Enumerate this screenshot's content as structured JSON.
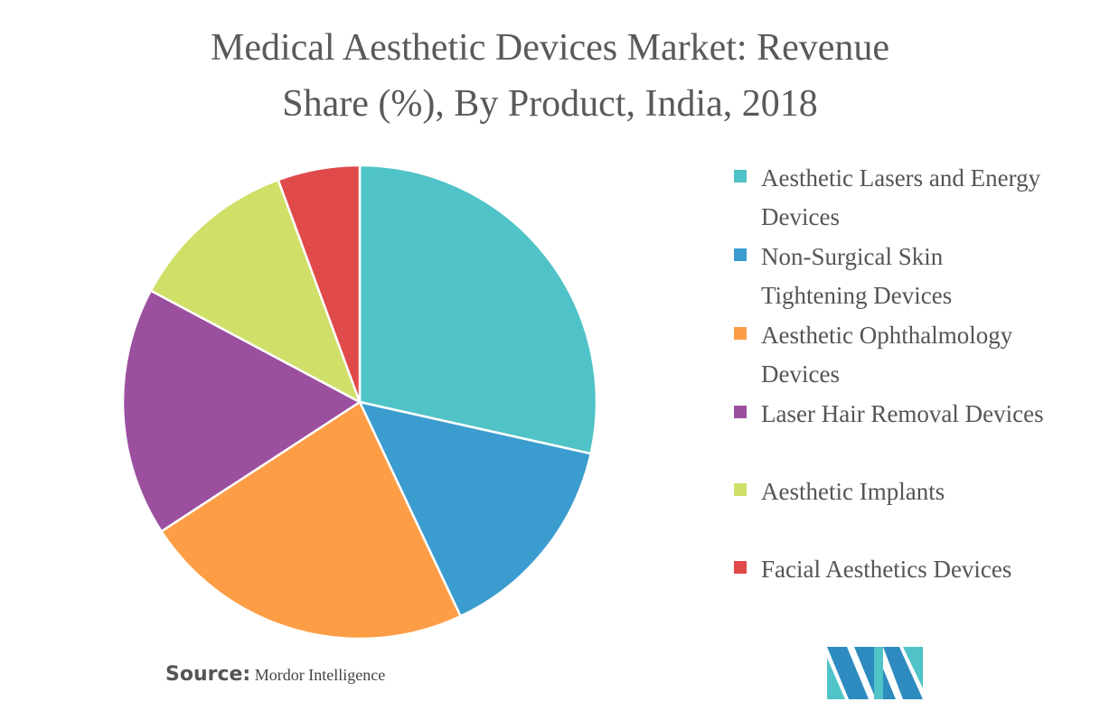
{
  "title_lines": [
    "Medical Aesthetic Devices Market: Revenue",
    "Share (%), By Product, India, 2018"
  ],
  "chart_data": {
    "type": "pie",
    "title": "Medical Aesthetic Devices Market: Revenue Share (%), By Product, India, 2018",
    "start_angle": "12 o'clock, clockwise",
    "legend_position": "right",
    "slices": [
      {
        "label": "Aesthetic Lasers and Energy Devices",
        "value": 28.5,
        "color": "#4fc3c7"
      },
      {
        "label": "Non-Surgical Skin Tightening Devices",
        "value": 14.5,
        "color": "#3b9ccf"
      },
      {
        "label": "Aesthetic Ophthalmology Devices",
        "value": 22.8,
        "color": "#fd9e46"
      },
      {
        "label": "Laser Hair Removal Devices",
        "value": 17.0,
        "color": "#9b4f9f"
      },
      {
        "label": "Aesthetic Implants",
        "value": 11.6,
        "color": "#d0df68"
      },
      {
        "label": "Facial Aesthetics Devices",
        "value": 5.6,
        "color": "#e04a4b"
      }
    ]
  },
  "legend": [
    [
      "Aesthetic Lasers and Energy",
      "Devices"
    ],
    [
      "Non-Surgical Skin",
      "Tightening Devices"
    ],
    [
      "Aesthetic Ophthalmology",
      "Devices"
    ],
    [
      "Laser Hair Removal Devices"
    ],
    [
      "Aesthetic Implants"
    ],
    [
      "Facial Aesthetics Devices"
    ]
  ],
  "source": {
    "label": "Source:",
    "text": "Mordor Intelligence"
  },
  "logo": {
    "colors": [
      "#2e8bc0",
      "#4fc3c7"
    ]
  }
}
